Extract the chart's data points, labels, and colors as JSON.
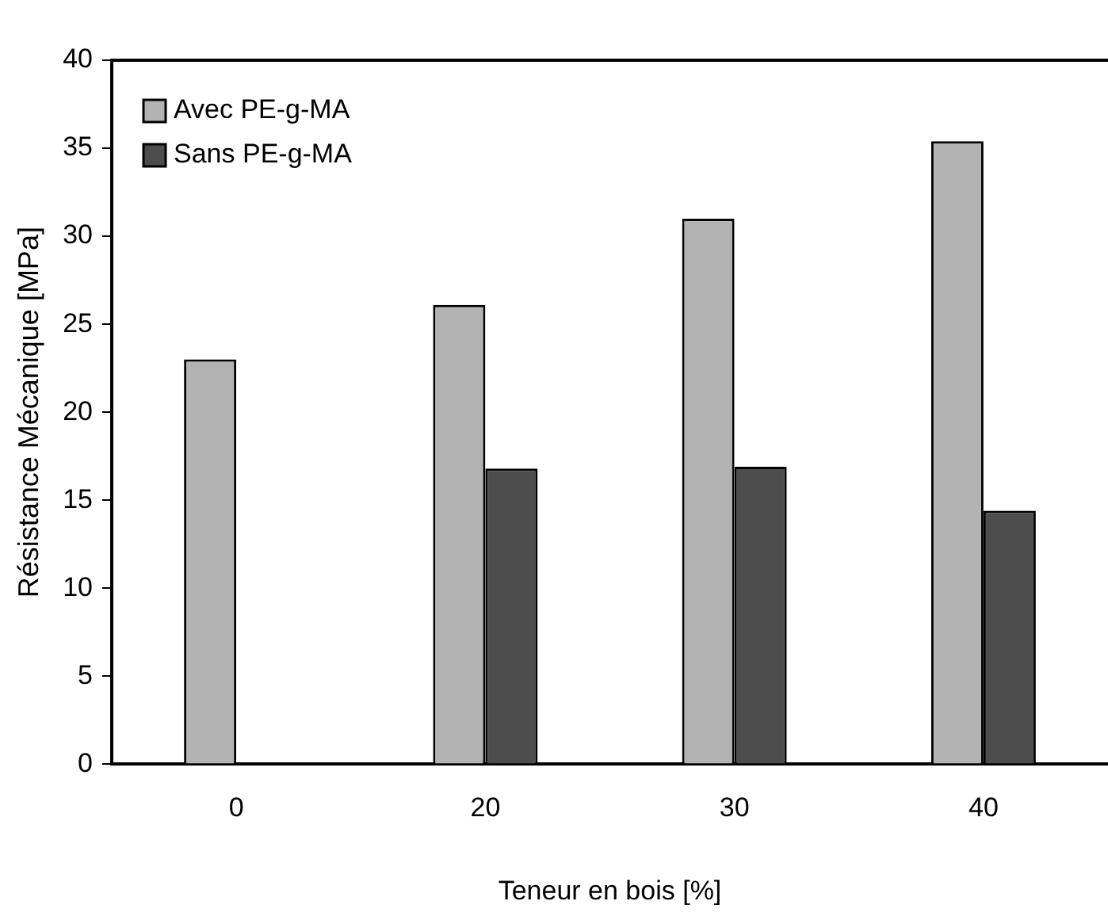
{
  "chart_data": {
    "type": "bar",
    "xlabel": "Teneur en bois [%]",
    "ylabel": "Résistance Mécanique [MPa]",
    "categories": [
      "0",
      "20",
      "30",
      "40"
    ],
    "series": [
      {
        "name": "Avec PE-g-MA",
        "color": "#b3b3b3",
        "values": [
          23.0,
          26.1,
          31.0,
          35.4
        ]
      },
      {
        "name": "Sans PE-g-MA",
        "color": "#4d4d4d",
        "values": [
          null,
          16.8,
          16.9,
          14.4
        ]
      }
    ],
    "ylim": [
      0,
      40
    ],
    "yticks": [
      0,
      5,
      10,
      15,
      20,
      25,
      30,
      35,
      40
    ],
    "grid": false,
    "legend": "top left"
  }
}
